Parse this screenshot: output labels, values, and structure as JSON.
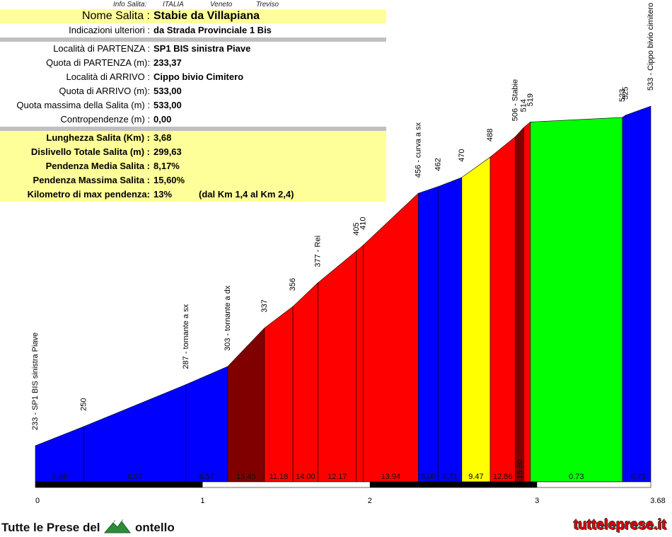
{
  "info_header": {
    "label": "Info Salita:",
    "country": "ITALIA",
    "region": "Veneto",
    "province": "Treviso"
  },
  "info_rows": [
    {
      "label": "Nome Salita :",
      "value": "Stabie da Villapiana"
    },
    {
      "label": "Indicazioni ulteriori :",
      "value": "da Strada Provinciale 1 Bis"
    },
    {
      "label": "Località di PARTENZA :",
      "value": "SP1 BIS sinistra Piave"
    },
    {
      "label": "Quota di PARTENZA (m):",
      "value": "233,37"
    },
    {
      "label": "Località di ARRIVO :",
      "value": "Cippo bivio Cimitero"
    },
    {
      "label": "Quota di ARRIVO (m):",
      "value": "533,00"
    },
    {
      "label": "Quota massima della Salita (m) :",
      "value": "533,00"
    },
    {
      "label": "Contropendenze (m) :",
      "value": "0,00"
    },
    {
      "label": "Lunghezza Salita (Km) :",
      "value": "3,68"
    },
    {
      "label": "Dislivello Totale Salita (m) :",
      "value": "299,63"
    },
    {
      "label": "Pendenza Media Salita :",
      "value": "8,17%"
    },
    {
      "label": "Pendenza Massima Salita :",
      "value": "15,60%"
    },
    {
      "label": "Kilometro di max pendenza:",
      "value": "13%",
      "extra": "(dal Km 1,4 al Km 2,4)"
    }
  ],
  "chart_data": {
    "type": "area",
    "title": "",
    "xlabel": "",
    "ylabel": "",
    "xlim": [
      0,
      3.68
    ],
    "ylim": [
      0,
      545
    ],
    "grid": false,
    "x_ticks": [
      {
        "x": 0,
        "label": "0"
      },
      {
        "x": 1,
        "label": "1"
      },
      {
        "x": 2,
        "label": "2"
      },
      {
        "x": 3,
        "label": "3"
      },
      {
        "x": 3.68,
        "label": "3.68"
      }
    ],
    "points": [
      {
        "x": 0.0,
        "elev": 233,
        "label": "233 - SP1 BIS sinistra Piave"
      },
      {
        "x": 0.29,
        "elev": 250,
        "label": "250"
      },
      {
        "x": 0.9,
        "elev": 287,
        "label": "287 - tornante a sx"
      },
      {
        "x": 1.15,
        "elev": 303,
        "label": "303 - tornante a dx"
      },
      {
        "x": 1.37,
        "elev": 337,
        "label": "337"
      },
      {
        "x": 1.54,
        "elev": 356,
        "label": "356"
      },
      {
        "x": 1.69,
        "elev": 377,
        "label": "377 - Rei"
      },
      {
        "x": 1.92,
        "elev": 405,
        "label": "405"
      },
      {
        "x": 1.96,
        "elev": 410,
        "label": "410"
      },
      {
        "x": 2.29,
        "elev": 456,
        "label": "456 - curva a sx"
      },
      {
        "x": 2.41,
        "elev": 462,
        "label": "462"
      },
      {
        "x": 2.55,
        "elev": 470,
        "label": "470"
      },
      {
        "x": 2.72,
        "elev": 488,
        "label": "488"
      },
      {
        "x": 2.87,
        "elev": 506,
        "label": "506 - Stabie"
      },
      {
        "x": 2.92,
        "elev": 514,
        "label": "514"
      },
      {
        "x": 2.96,
        "elev": 519,
        "label": "519"
      },
      {
        "x": 3.51,
        "elev": 523,
        "label": "523"
      },
      {
        "x": 3.53,
        "elev": 525,
        "label": "525"
      },
      {
        "x": 3.68,
        "elev": 533,
        "label": "533 - Cippo bivio cimitero"
      }
    ],
    "segments": [
      {
        "from": 0.0,
        "to": 0.29,
        "gradient": "5.86",
        "color": "#0000ff"
      },
      {
        "from": 0.29,
        "to": 0.9,
        "gradient": "6.07",
        "color": "#0000ff"
      },
      {
        "from": 0.9,
        "to": 1.15,
        "gradient": "6.57",
        "color": "#0000ff"
      },
      {
        "from": 1.15,
        "to": 1.37,
        "gradient": "15.45",
        "color": "#800000"
      },
      {
        "from": 1.37,
        "to": 1.54,
        "gradient": "11.18",
        "color": "#ff0000"
      },
      {
        "from": 1.54,
        "to": 1.69,
        "gradient": "14.00",
        "color": "#ff0000"
      },
      {
        "from": 1.69,
        "to": 1.92,
        "gradient": "12.17",
        "color": "#ff0000"
      },
      {
        "from": 1.92,
        "to": 1.96,
        "gradient": "",
        "color": "#ff0000"
      },
      {
        "from": 1.96,
        "to": 2.29,
        "gradient": "13.94",
        "color": "#ff0000"
      },
      {
        "from": 2.29,
        "to": 2.41,
        "gradient": "5.00",
        "color": "#0000ff"
      },
      {
        "from": 2.41,
        "to": 2.55,
        "gradient": "5.71",
        "color": "#0000ff"
      },
      {
        "from": 2.55,
        "to": 2.72,
        "gradient": "9.47",
        "color": "#ffff00"
      },
      {
        "from": 2.72,
        "to": 2.87,
        "gradient": "12.86",
        "color": "#ff0000"
      },
      {
        "from": 2.87,
        "to": 2.92,
        "gradient": "15.60",
        "color": "#800000"
      },
      {
        "from": 2.92,
        "to": 2.96,
        "gradient": "",
        "color": "#ff0000"
      },
      {
        "from": 2.96,
        "to": 3.51,
        "gradient": "0.73",
        "color": "#00ff00"
      },
      {
        "from": 3.51,
        "to": 3.53,
        "gradient": "",
        "color": "#0000ff"
      },
      {
        "from": 3.53,
        "to": 3.68,
        "gradient": "5.71",
        "color": "#0000ff"
      }
    ]
  },
  "footer": {
    "logo_left_before": "Tutte le Prese del",
    "logo_left_after": "ontello",
    "logo_right": "tutteleprese.it"
  }
}
